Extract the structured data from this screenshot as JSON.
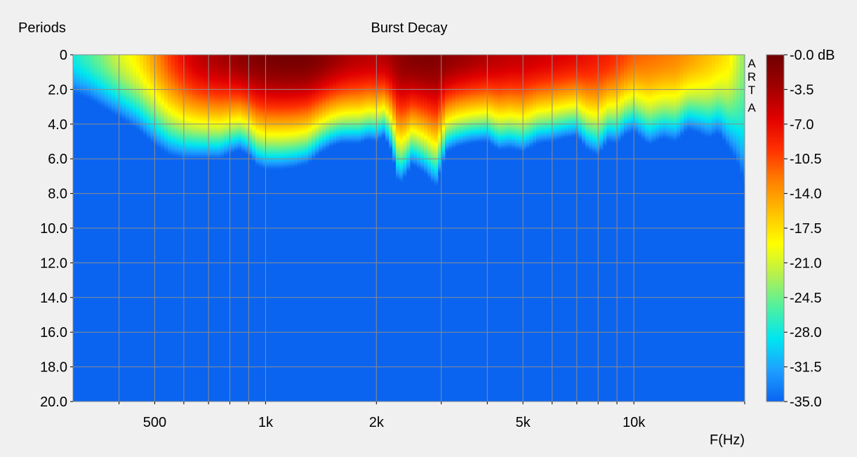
{
  "chart_data": {
    "type": "heatmap",
    "title": "Burst Decay",
    "ylabel": "Periods",
    "xlabel": "F(Hz)",
    "brand_letters": [
      "A",
      "R",
      "T",
      "A"
    ],
    "x_scale": "log",
    "xlim": [
      300,
      20000
    ],
    "ylim": [
      0,
      20
    ],
    "y_inverted": true,
    "grid": true,
    "y_ticks": [
      {
        "value": 0,
        "label": "0"
      },
      {
        "value": 2,
        "label": "2.0"
      },
      {
        "value": 4,
        "label": "4.0"
      },
      {
        "value": 6,
        "label": "6.0"
      },
      {
        "value": 8,
        "label": "8.0"
      },
      {
        "value": 10,
        "label": "10.0"
      },
      {
        "value": 12,
        "label": "12.0"
      },
      {
        "value": 14,
        "label": "14.0"
      },
      {
        "value": 16,
        "label": "16.0"
      },
      {
        "value": 18,
        "label": "18.0"
      },
      {
        "value": 20,
        "label": "20.0"
      }
    ],
    "x_tick_labels": [
      {
        "value": 500,
        "label": "500"
      },
      {
        "value": 1000,
        "label": "1k"
      },
      {
        "value": 2000,
        "label": "2k"
      },
      {
        "value": 5000,
        "label": "5k"
      },
      {
        "value": 10000,
        "label": "10k"
      }
    ],
    "x_gridlines": [
      400,
      500,
      600,
      700,
      800,
      900,
      1000,
      2000,
      3000,
      4000,
      5000,
      6000,
      7000,
      8000,
      9000,
      10000,
      20000
    ],
    "colorbar": {
      "unit": "dB",
      "range": [
        -35,
        0
      ],
      "colors": [
        "#0a64f0",
        "#1ea0ff",
        "#00e6f0",
        "#50f0a0",
        "#b4f050",
        "#ffff00",
        "#ffc000",
        "#ff8000",
        "#ff3000",
        "#e00000",
        "#a00000",
        "#700000"
      ],
      "ticks": [
        {
          "value": 0,
          "label": "-0.0 dB"
        },
        {
          "value": -3.5,
          "label": "-3.5"
        },
        {
          "value": -7,
          "label": "-7.0"
        },
        {
          "value": -10.5,
          "label": "-10.5"
        },
        {
          "value": -14,
          "label": "-14.0"
        },
        {
          "value": -17.5,
          "label": "-17.5"
        },
        {
          "value": -21,
          "label": "-21.0"
        },
        {
          "value": -24.5,
          "label": "-24.5"
        },
        {
          "value": -28,
          "label": "-28.0"
        },
        {
          "value": -31.5,
          "label": "-31.5"
        },
        {
          "value": -35,
          "label": "-35.0"
        }
      ]
    },
    "decay_profile": {
      "freq_hz": [
        300,
        330,
        360,
        400,
        450,
        500,
        550,
        600,
        650,
        700,
        750,
        800,
        850,
        900,
        950,
        1000,
        1100,
        1200,
        1300,
        1400,
        1500,
        1600,
        1700,
        1800,
        1900,
        2000,
        2100,
        2200,
        2300,
        2400,
        2500,
        2700,
        2900,
        3100,
        3300,
        3600,
        4000,
        4300,
        4600,
        5000,
        5500,
        6000,
        6500,
        7000,
        7500,
        8000,
        8500,
        9000,
        9500,
        10000,
        11000,
        12000,
        13000,
        14000,
        15000,
        16000,
        17000,
        18000,
        19000,
        20000
      ],
      "peak_db": [
        -28,
        -26,
        -24,
        -21,
        -18,
        -14,
        -10,
        -7,
        -5,
        -4,
        -3.5,
        -2.8,
        -2,
        -1.5,
        -1,
        -0.6,
        -0.3,
        -0.2,
        -0.4,
        -1.2,
        -2.3,
        -3.2,
        -4,
        -4.3,
        -4.5,
        -4.5,
        -4.2,
        -3.3,
        -2.3,
        -1.6,
        -1.2,
        -1,
        -1.2,
        -1.8,
        -2.5,
        -3.2,
        -4,
        -4.5,
        -4.8,
        -5,
        -5.5,
        -6,
        -6.5,
        -7,
        -7.5,
        -8,
        -8.5,
        -9.5,
        -10.5,
        -11.5,
        -12,
        -12.5,
        -13,
        -14,
        -15,
        -16,
        -17,
        -18,
        -21,
        -24
      ],
      "decay_end_periods": [
        2.2,
        2.5,
        3,
        3.6,
        4.3,
        5.2,
        5.8,
        6,
        6,
        6,
        6,
        5.7,
        5.5,
        5.8,
        6.4,
        6.6,
        6.6,
        6.5,
        6.3,
        5.7,
        5.3,
        5.1,
        5.1,
        5.1,
        4.9,
        5,
        4.7,
        5.6,
        7.5,
        7,
        6.3,
        6.8,
        7.6,
        5.6,
        5.3,
        5.1,
        5,
        5.5,
        5.4,
        5.6,
        5.1,
        5,
        4.8,
        4.7,
        5.5,
        5.8,
        5,
        5.1,
        4.6,
        4.4,
        5.2,
        4.8,
        5,
        4.3,
        4.5,
        4.8,
        4.5,
        5.3,
        6.1,
        7.4
      ]
    }
  }
}
